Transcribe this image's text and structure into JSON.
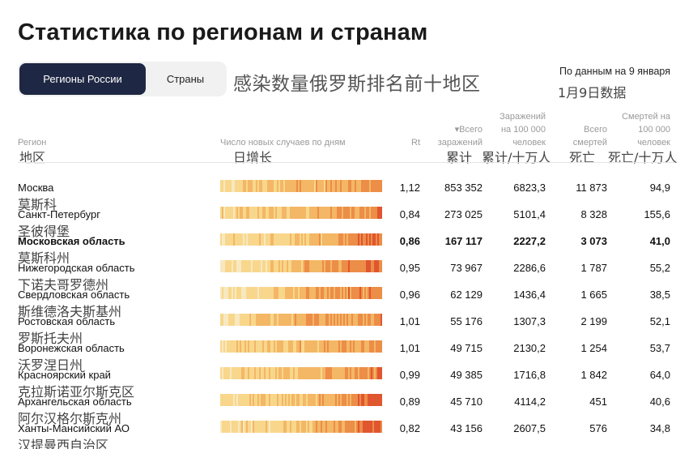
{
  "page": {
    "title": "Статистика по регионам и странам"
  },
  "tabs": [
    {
      "label": "Регионы России",
      "active": true
    },
    {
      "label": "Страны",
      "active": false
    }
  ],
  "overlay_title": "感染数量俄罗斯排名前十地区",
  "date": {
    "ru": "По данным на 9 января",
    "zh": "1月9日数据"
  },
  "columns": {
    "region": "Регион",
    "region_zh": "地区",
    "daily": "Число новых случаев по дням",
    "daily_zh": "日增长",
    "rt": "Rt",
    "cases": "▾Всего заражений",
    "cases_zh": "累计",
    "cases_per100k": "Заражений на 100 000 человек",
    "cases_per100k_zh": "累计/十万人",
    "deaths": "Всего смертей",
    "deaths_zh": "死亡",
    "deaths_per100k": "Смертей на 100 000 человек",
    "deaths_per100k_zh": "死亡/十万人"
  },
  "colors": {
    "tab_active_bg": "#1e2743",
    "heat_scale": [
      "#f7e8c0",
      "#f8d78c",
      "#f3b765",
      "#ec8d48",
      "#e0562f",
      "#b8261f"
    ]
  },
  "rows": [
    {
      "name": "Москва",
      "zh": "莫斯科",
      "rt": "1,12",
      "cases": "853 352",
      "cases_p": "6823,3",
      "deaths": "11 873",
      "deaths_p": "94,9",
      "bold": false
    },
    {
      "name": "Санкт-Петербург",
      "zh": "圣彼得堡",
      "rt": "0,84",
      "cases": "273 025",
      "cases_p": "5101,4",
      "deaths": "8 328",
      "deaths_p": "155,6",
      "bold": false
    },
    {
      "name": "Московская область",
      "zh": "莫斯科州",
      "rt": "0,86",
      "cases": "167 117",
      "cases_p": "2227,2",
      "deaths": "3 073",
      "deaths_p": "41,0",
      "bold": true
    },
    {
      "name": "Нижегородская область",
      "zh": "下诺夫哥罗德州",
      "rt": "0,95",
      "cases": "73 967",
      "cases_p": "2286,6",
      "deaths": "1 787",
      "deaths_p": "55,2",
      "bold": false
    },
    {
      "name": "Свердловская область",
      "zh": "斯维德洛夫斯基州",
      "rt": "0,96",
      "cases": "62 129",
      "cases_p": "1436,4",
      "deaths": "1 665",
      "deaths_p": "38,5",
      "bold": false
    },
    {
      "name": "Ростовская область",
      "zh": "罗斯托夫州",
      "rt": "1,01",
      "cases": "55 176",
      "cases_p": "1307,3",
      "deaths": "2 199",
      "deaths_p": "52,1",
      "bold": false
    },
    {
      "name": "Воронежская область",
      "zh": "沃罗涅日州",
      "rt": "1,01",
      "cases": "49 715",
      "cases_p": "2130,2",
      "deaths": "1 254",
      "deaths_p": "53,7",
      "bold": false
    },
    {
      "name": "Красноярский край",
      "zh": "克拉斯诺亚尔斯克区",
      "rt": "0,99",
      "cases": "49 385",
      "cases_p": "1716,8",
      "deaths": "1 842",
      "deaths_p": "64,0",
      "bold": false
    },
    {
      "name": "Архангельская область",
      "zh": "阿尔汉格尔斯克州",
      "rt": "0,89",
      "cases": "45 710",
      "cases_p": "4114,2",
      "deaths": "451",
      "deaths_p": "40,6",
      "bold": false
    },
    {
      "name": "Ханты-Мансийский АО",
      "zh": "汉提曼西自治区",
      "rt": "0,82",
      "cases": "43 156",
      "cases_p": "2607,5",
      "deaths": "576",
      "deaths_p": "34,8",
      "bold": false
    }
  ]
}
